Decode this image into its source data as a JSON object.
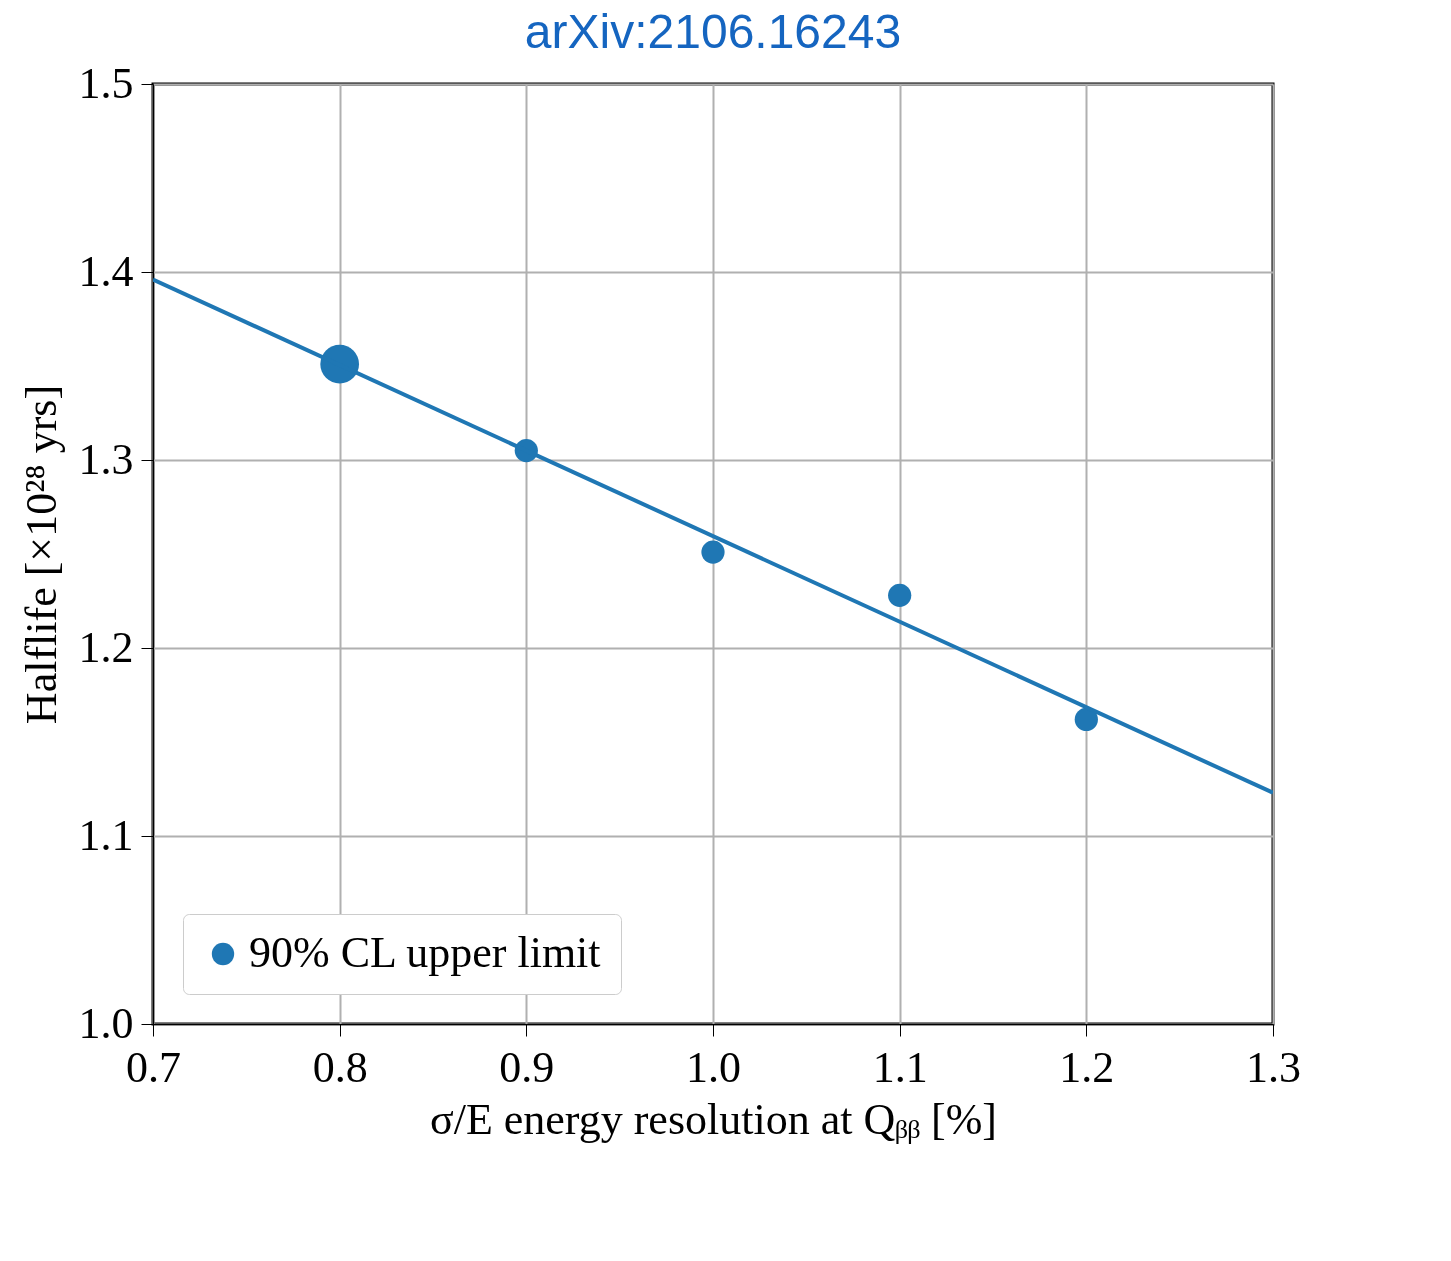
{
  "chart_data": {
    "type": "bubble",
    "title": "arXiv:2106.16243",
    "xlabel": "σ/E energy resolution at Qᵦᵦ [%]",
    "ylabel": "Halflife [×10²⁸ yrs]",
    "series": [
      {
        "name": "90% CL upper limit",
        "color": "#1f77b4",
        "marker": "circle",
        "x": [
          0.8,
          0.9,
          1.0,
          1.1,
          1.2
        ],
        "values": [
          1.351,
          1.305,
          1.251,
          1.228,
          1.162
        ],
        "sizes": [
          1,
          0.36,
          0.36,
          0.36,
          0.36
        ]
      },
      {
        "type": "line",
        "color": "#1f77b4",
        "x": [
          0.7,
          1.3
        ],
        "values": [
          1.396,
          1.123
        ]
      }
    ],
    "xlim": [
      0.7,
      1.3
    ],
    "xticks": [
      0.7,
      0.8,
      0.9,
      {
        "value": 1.0,
        "label": "1.0"
      },
      1.1,
      1.2,
      1.3
    ],
    "ylim": [
      1.0,
      1.5
    ],
    "yticks": [
      {
        "value": 1.0,
        "label": "1.0"
      },
      1.1,
      1.2,
      1.3,
      1.4,
      1.5
    ],
    "grid": true,
    "legend": "bottom left"
  }
}
